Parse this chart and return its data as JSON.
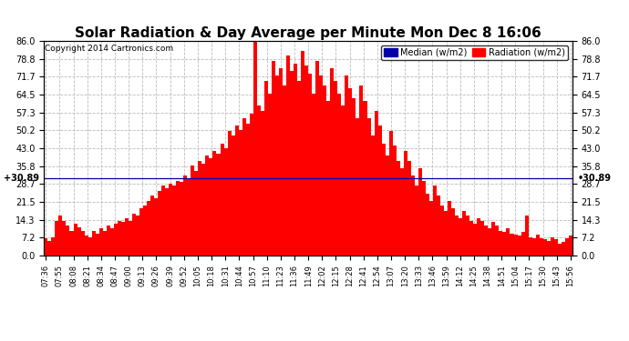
{
  "title": "Solar Radiation & Day Average per Minute Mon Dec 8 16:06",
  "copyright": "Copyright 2014 Cartronics.com",
  "median_value": 30.89,
  "ylim": [
    0.0,
    86.0
  ],
  "yticks": [
    0.0,
    7.2,
    14.3,
    21.5,
    28.7,
    35.8,
    43.0,
    50.2,
    57.3,
    64.5,
    71.7,
    78.8,
    86.0
  ],
  "background_color": "#ffffff",
  "bar_color": "#ff0000",
  "median_line_color": "#0000aa",
  "grid_color": "#bbbbbb",
  "title_fontsize": 11,
  "x_labels": [
    "07:36",
    "07:55",
    "08:08",
    "08:21",
    "08:34",
    "08:47",
    "09:00",
    "09:13",
    "09:26",
    "09:39",
    "09:52",
    "10:05",
    "10:18",
    "10:31",
    "10:44",
    "10:57",
    "11:10",
    "11:23",
    "11:36",
    "11:49",
    "12:02",
    "12:15",
    "12:28",
    "12:41",
    "12:54",
    "13:07",
    "13:20",
    "13:33",
    "13:46",
    "13:59",
    "14:12",
    "14:25",
    "14:38",
    "14:51",
    "15:04",
    "15:17",
    "15:30",
    "15:43",
    "15:56"
  ],
  "bar_values": [
    7.0,
    6.0,
    7.5,
    14.0,
    16.0,
    14.0,
    12.0,
    10.0,
    13.0,
    11.5,
    10.0,
    8.0,
    7.5,
    10.0,
    9.0,
    11.0,
    10.0,
    12.0,
    11.0,
    13.0,
    14.0,
    13.5,
    15.0,
    14.0,
    17.0,
    16.0,
    19.0,
    20.0,
    22.0,
    24.0,
    23.0,
    26.0,
    28.0,
    27.0,
    29.0,
    28.0,
    30.0,
    29.5,
    32.0,
    31.0,
    36.0,
    34.0,
    38.0,
    37.0,
    40.0,
    39.0,
    42.0,
    41.0,
    45.0,
    43.0,
    50.0,
    48.0,
    52.0,
    50.5,
    55.0,
    53.0,
    57.0,
    86.0,
    60.0,
    58.0,
    70.0,
    65.0,
    78.0,
    72.0,
    75.0,
    68.0,
    80.0,
    74.0,
    77.0,
    70.0,
    82.0,
    76.0,
    73.0,
    65.0,
    78.0,
    72.0,
    68.0,
    62.0,
    75.0,
    70.0,
    65.0,
    60.0,
    72.0,
    67.0,
    63.0,
    55.0,
    68.0,
    62.0,
    55.0,
    48.0,
    58.0,
    52.0,
    45.0,
    40.0,
    50.0,
    44.0,
    38.0,
    35.0,
    42.0,
    38.0,
    32.0,
    28.0,
    35.0,
    30.0,
    25.0,
    22.0,
    28.0,
    24.0,
    20.0,
    18.0,
    22.0,
    19.0,
    16.0,
    15.0,
    18.0,
    16.0,
    14.0,
    13.0,
    15.0,
    14.0,
    12.0,
    11.0,
    13.5,
    12.0,
    10.0,
    9.5,
    11.0,
    9.0,
    8.5,
    8.0,
    9.5,
    16.0,
    7.5,
    7.0,
    8.5,
    7.0,
    6.5,
    6.0,
    7.5,
    6.5,
    5.0,
    5.5,
    7.0,
    8.0
  ]
}
